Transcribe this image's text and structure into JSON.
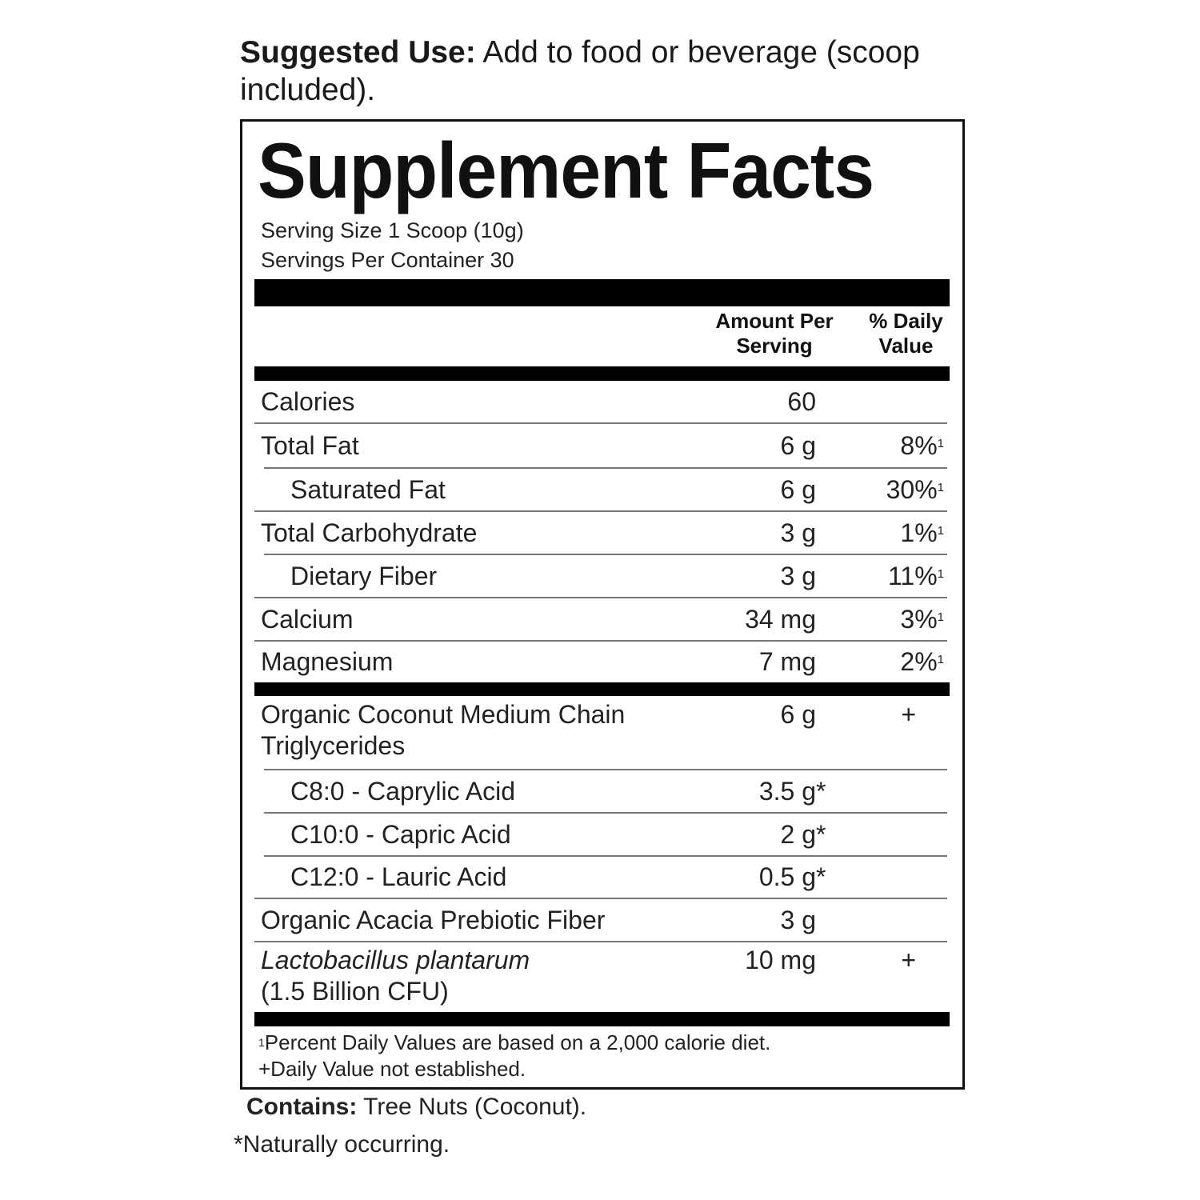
{
  "suggested_use": {
    "label": "Suggested Use:",
    "text": " Add to food or beverage (scoop included)."
  },
  "panel": {
    "title": "Supplement Facts",
    "serving_size": "Serving Size 1 Scoop (10g)",
    "servings_per_container": "Servings Per Container 30",
    "header": {
      "amount_line1": "Amount Per",
      "amount_line2": "Serving",
      "dv_line1": "% Daily",
      "dv_line2": "Value"
    },
    "rows_group1": [
      {
        "label": "Calories",
        "amount": "60"
      },
      {
        "label": "Total Fat",
        "amount": "6 g",
        "dv": "8%",
        "dv_note": "1"
      },
      {
        "label": "Saturated Fat",
        "amount": "6 g",
        "dv": "30%",
        "dv_note": "1",
        "indent": true
      },
      {
        "label": "Total Carbohydrate",
        "amount": "3 g",
        "dv": "1%",
        "dv_note": "1"
      },
      {
        "label": "Dietary Fiber",
        "amount": "3 g",
        "dv": "11%",
        "dv_note": "1",
        "indent": true
      },
      {
        "label": "Calcium",
        "amount": "34 mg",
        "dv": "3%",
        "dv_note": "1"
      },
      {
        "label": "Magnesium",
        "amount": "7 mg",
        "dv": "2%",
        "dv_note": "1"
      }
    ],
    "rows_group2": [
      {
        "label": "Organic Coconut Medium Chain Triglycerides",
        "amount": "6 g",
        "dv": "+"
      },
      {
        "label": "C8:0 - Caprylic Acid",
        "amount": "3.5 g",
        "amount_note": "*",
        "indent": true
      },
      {
        "label": "C10:0 - Capric Acid",
        "amount": "2 g",
        "amount_note": "*",
        "indent": true
      },
      {
        "label": "C12:0 - Lauric Acid",
        "amount": "0.5 g",
        "amount_note": "*",
        "indent": true
      },
      {
        "label": "Organic Acacia Prebiotic Fiber",
        "amount": "3 g"
      },
      {
        "label": "Lactobacillus plantarum",
        "sublabel": "(1.5 Billion CFU)",
        "italic": true,
        "amount": "10 mg",
        "dv": "+"
      }
    ],
    "footnote_mark": "1",
    "footnote1": "Percent Daily Values are based on a 2,000 calorie diet.",
    "footnote2": "+Daily Value not established."
  },
  "contains": {
    "label": "Contains:",
    "text": " Tree Nuts (Coconut)."
  },
  "naturally": "*Naturally occurring."
}
